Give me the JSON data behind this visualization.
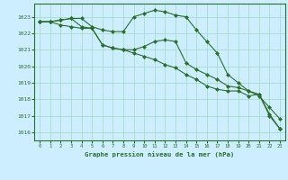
{
  "title": "Graphe pression niveau de la mer (hPa)",
  "bg_color": "#cceeff",
  "grid_color": "#aaddcc",
  "line_color": "#2d6e2d",
  "marker_color": "#2d6e2d",
  "xlim": [
    -0.5,
    23.5
  ],
  "ylim": [
    1015.5,
    1023.8
  ],
  "yticks": [
    1016,
    1017,
    1018,
    1019,
    1020,
    1021,
    1022,
    1023
  ],
  "xticks": [
    0,
    1,
    2,
    3,
    4,
    5,
    6,
    7,
    8,
    9,
    10,
    11,
    12,
    13,
    14,
    15,
    16,
    17,
    18,
    19,
    20,
    21,
    22,
    23
  ],
  "series1": [
    1022.7,
    1022.7,
    1022.8,
    1022.9,
    1022.9,
    1022.4,
    1022.2,
    1022.1,
    1022.1,
    1023.0,
    1023.2,
    1023.4,
    1023.3,
    1023.1,
    1023.0,
    1022.2,
    1021.5,
    1020.8,
    1019.5,
    1019.0,
    1018.5,
    1018.3,
    1017.1,
    1016.2
  ],
  "series2": [
    1022.7,
    1022.7,
    1022.8,
    1022.9,
    1022.4,
    1022.3,
    1021.3,
    1021.1,
    1021.0,
    1021.0,
    1021.2,
    1021.5,
    1021.6,
    1021.5,
    1020.2,
    1019.8,
    1019.5,
    1019.2,
    1018.8,
    1018.7,
    1018.5,
    1018.2,
    1017.5,
    1016.8
  ],
  "series3": [
    1022.7,
    1022.7,
    1022.5,
    1022.4,
    1022.3,
    1022.3,
    1021.3,
    1021.1,
    1021.0,
    1020.8,
    1020.6,
    1020.4,
    1020.1,
    1019.9,
    1019.5,
    1019.2,
    1018.8,
    1018.6,
    1018.5,
    1018.5,
    1018.2,
    1018.3,
    1017.0,
    1016.2
  ]
}
